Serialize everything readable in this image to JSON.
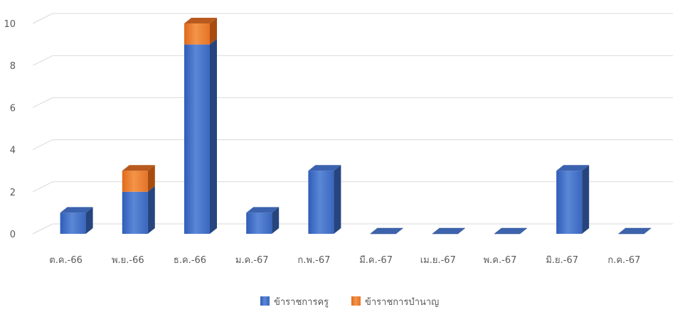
{
  "chart_data": {
    "type": "bar",
    "stacked": true,
    "style": "3d-column",
    "categories": [
      "ต.ค.-66",
      "พ.ย.-66",
      "ธ.ค.-66",
      "ม.ค.-67",
      "ก.พ.-67",
      "มี.ค.-67",
      "เม.ย.-67",
      "พ.ค.-67",
      "มิ.ย.-67",
      "ก.ค.-67"
    ],
    "series": [
      {
        "name": "ข้าราชการครู",
        "values": [
          1,
          2,
          9,
          1,
          3,
          0,
          0,
          0,
          3,
          0
        ],
        "color": "#4472C4"
      },
      {
        "name": "ข้าราชการบำนาญ",
        "values": [
          0,
          1,
          1,
          0,
          0,
          0,
          0,
          0,
          0,
          0
        ],
        "color": "#ED7D31"
      }
    ],
    "ylim": [
      0,
      10
    ],
    "yticks": [
      0,
      2,
      4,
      6,
      8,
      10
    ],
    "grid": true,
    "legend_position": "bottom",
    "title": "",
    "xlabel": "",
    "ylabel": ""
  }
}
